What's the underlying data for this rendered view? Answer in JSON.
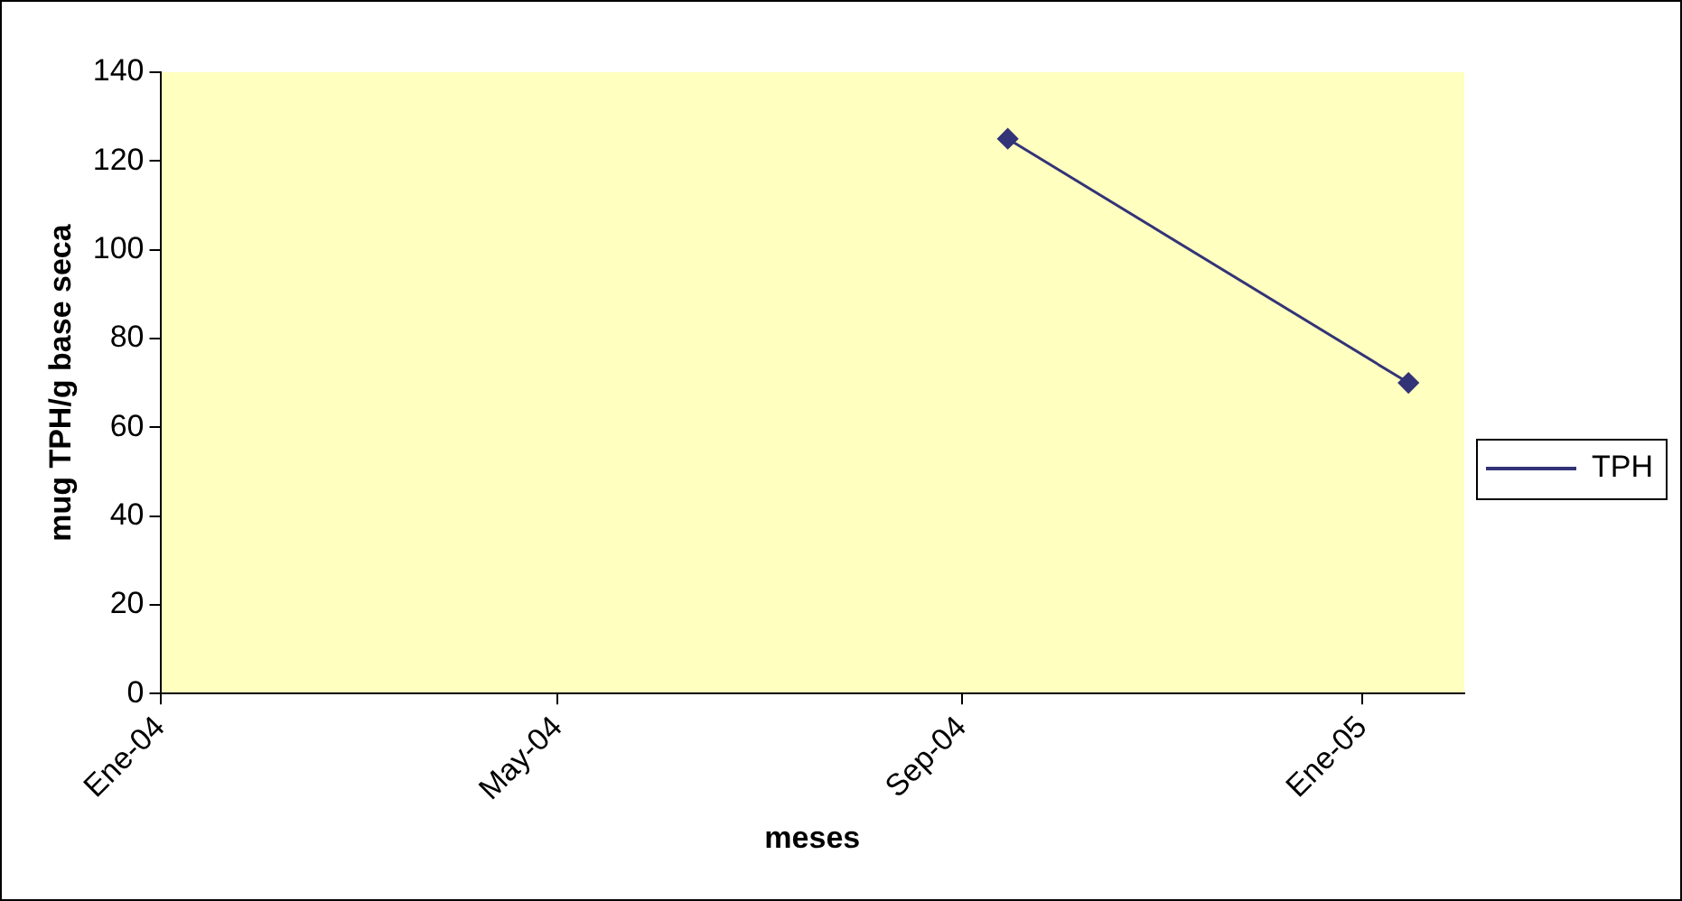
{
  "chart_data": {
    "type": "line",
    "xlabel": "meses",
    "ylabel": "mug TPH/g base seca",
    "x": [
      "2004-09-15",
      "2005-01-15"
    ],
    "series": [
      {
        "name": "TPH",
        "color": "#333377",
        "values": [
          125,
          70
        ]
      }
    ],
    "xlim": [
      "2004-01",
      "2005-02"
    ],
    "xticks": [
      {
        "value": "2004-01",
        "label": "Ene-04"
      },
      {
        "value": "2004-05",
        "label": "May-04"
      },
      {
        "value": "2004-09",
        "label": "Sep-04"
      },
      {
        "value": "2005-01",
        "label": "Ene-05"
      }
    ],
    "ylim": [
      0,
      140
    ],
    "yticks": [
      0,
      20,
      40,
      60,
      80,
      100,
      120,
      140
    ],
    "grid": false,
    "legend": "right",
    "marker": "diamond",
    "line_style": "solid"
  }
}
